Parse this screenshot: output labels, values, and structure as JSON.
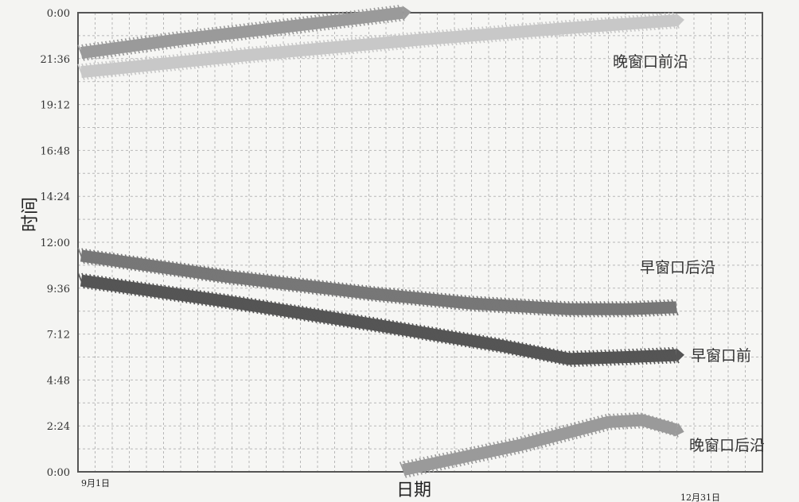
{
  "chart_data": {
    "type": "line",
    "xlabel": "日期",
    "ylabel": "时间",
    "x_start_label": "9月1日",
    "x_end_label": "12月31日",
    "y_ticks": [
      "0:00",
      "2:24",
      "4:48",
      "7:12",
      "9:36",
      "12:00",
      "14:24",
      "16:48",
      "19:12",
      "21:36",
      "0:00"
    ],
    "ylim_hours": [
      0,
      24
    ],
    "grid": true,
    "series": [
      {
        "name": "晚窗口前沿",
        "color": "#c8c8c8",
        "marker": "thick-x-band",
        "x_day": [
          0,
          35,
          70,
          100,
          122
        ],
        "y_hours": [
          20.9,
          21.8,
          22.6,
          23.2,
          23.6
        ]
      },
      {
        "name": "晚窗口前沿",
        "color": "#9a9a9a",
        "marker": "thick-x-band",
        "x_day": [
          0,
          20,
          40,
          66
        ],
        "y_hours": [
          21.9,
          22.6,
          23.2,
          24.0
        ]
      },
      {
        "name": "早窗口后沿",
        "color": "#777777",
        "marker": "thick-band",
        "x_day": [
          0,
          30,
          60,
          80,
          100,
          112,
          122
        ],
        "y_hours": [
          11.3,
          10.2,
          9.3,
          8.8,
          8.5,
          8.5,
          8.6
        ]
      },
      {
        "name": "早窗口前",
        "color": "#555555",
        "marker": "thick-x-band",
        "x_day": [
          0,
          30,
          60,
          86,
          100,
          112,
          122
        ],
        "y_hours": [
          10.0,
          8.9,
          7.7,
          6.6,
          5.9,
          6.0,
          6.1
        ]
      },
      {
        "name": "晚窗口后沿",
        "color": "#9a9a9a",
        "marker": "thick-x-band",
        "x_day": [
          66,
          90,
          108,
          115,
          122
        ],
        "y_hours": [
          0.1,
          1.4,
          2.6,
          2.7,
          2.2
        ]
      }
    ]
  }
}
